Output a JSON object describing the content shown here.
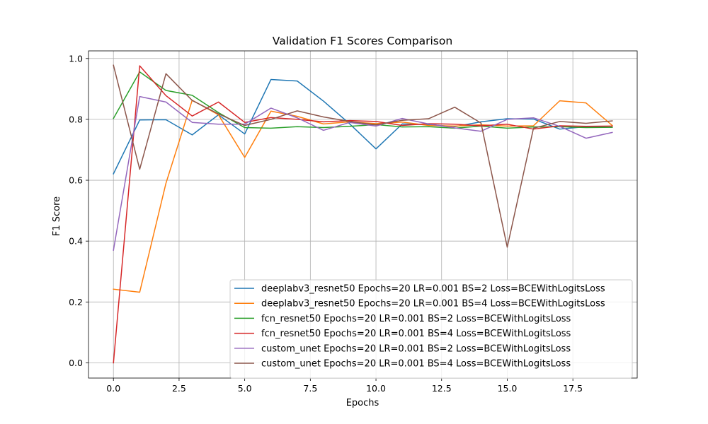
{
  "chart_data": {
    "type": "line",
    "title": "Validation F1 Scores Comparison",
    "xlabel": "Epochs",
    "ylabel": "F1 Score",
    "xlim": [
      -0.95,
      19.95
    ],
    "ylim": [
      -0.05,
      1.025
    ],
    "xticks": [
      0.0,
      2.5,
      5.0,
      7.5,
      10.0,
      12.5,
      15.0,
      17.5
    ],
    "xtick_labels": [
      "0.0",
      "2.5",
      "5.0",
      "7.5",
      "10.0",
      "12.5",
      "15.0",
      "17.5"
    ],
    "yticks": [
      0.0,
      0.2,
      0.4,
      0.6,
      0.8,
      1.0
    ],
    "ytick_labels": [
      "0.0",
      "0.2",
      "0.4",
      "0.6",
      "0.8",
      "1.0"
    ],
    "grid": true,
    "legend_position": "lower-right",
    "x": [
      0,
      1,
      2,
      3,
      4,
      5,
      6,
      7,
      8,
      9,
      10,
      11,
      12,
      13,
      14,
      15,
      16,
      17,
      18,
      19
    ],
    "series": [
      {
        "name": "deeplabv3_resnet50 Epochs=20 LR=0.001 BS=2 Loss=BCEWithLogitsLoss",
        "color": "#1f77b4",
        "values": [
          0.621,
          0.798,
          0.799,
          0.749,
          0.815,
          0.752,
          0.931,
          0.926,
          0.86,
          0.785,
          0.703,
          0.785,
          0.783,
          0.776,
          0.792,
          0.802,
          0.801,
          0.768,
          0.776,
          0.774
        ]
      },
      {
        "name": "deeplabv3_resnet50 Epochs=20 LR=0.001 BS=4 Loss=BCEWithLogitsLoss",
        "color": "#ff7f0e",
        "values": [
          0.242,
          0.232,
          0.59,
          0.863,
          0.815,
          0.675,
          0.827,
          0.81,
          0.785,
          0.792,
          0.786,
          0.791,
          0.78,
          0.778,
          0.782,
          0.778,
          0.779,
          0.861,
          0.854,
          0.78
        ]
      },
      {
        "name": "fcn_resnet50 Epochs=20 LR=0.001 BS=2 Loss=BCEWithLogitsLoss",
        "color": "#2ca02c",
        "values": [
          0.803,
          0.956,
          0.895,
          0.879,
          0.822,
          0.773,
          0.771,
          0.776,
          0.773,
          0.777,
          0.783,
          0.775,
          0.776,
          0.771,
          0.778,
          0.771,
          0.775,
          0.776,
          0.773,
          0.774
        ]
      },
      {
        "name": "fcn_resnet50 Epochs=20 LR=0.001 BS=4 Loss=BCEWithLogitsLoss",
        "color": "#d62728",
        "values": [
          0.0,
          0.976,
          0.878,
          0.811,
          0.857,
          0.79,
          0.806,
          0.8,
          0.792,
          0.796,
          0.793,
          0.78,
          0.786,
          0.784,
          0.779,
          0.784,
          0.768,
          0.779,
          0.777,
          0.778
        ]
      },
      {
        "name": "custom_unet Epochs=20 LR=0.001 BS=2 Loss=BCEWithLogitsLoss",
        "color": "#9467bd",
        "values": [
          0.37,
          0.875,
          0.857,
          0.79,
          0.784,
          0.784,
          0.837,
          0.805,
          0.764,
          0.79,
          0.778,
          0.803,
          0.785,
          0.772,
          0.761,
          0.8,
          0.805,
          0.777,
          0.738,
          0.757
        ]
      },
      {
        "name": "custom_unet Epochs=20 LR=0.001 BS=4 Loss=BCEWithLogitsLoss",
        "color": "#8c564b",
        "values": [
          0.978,
          0.636,
          0.95,
          0.862,
          0.818,
          0.78,
          0.8,
          0.828,
          0.808,
          0.793,
          0.782,
          0.797,
          0.802,
          0.84,
          0.788,
          0.38,
          0.771,
          0.793,
          0.787,
          0.795
        ]
      }
    ]
  }
}
